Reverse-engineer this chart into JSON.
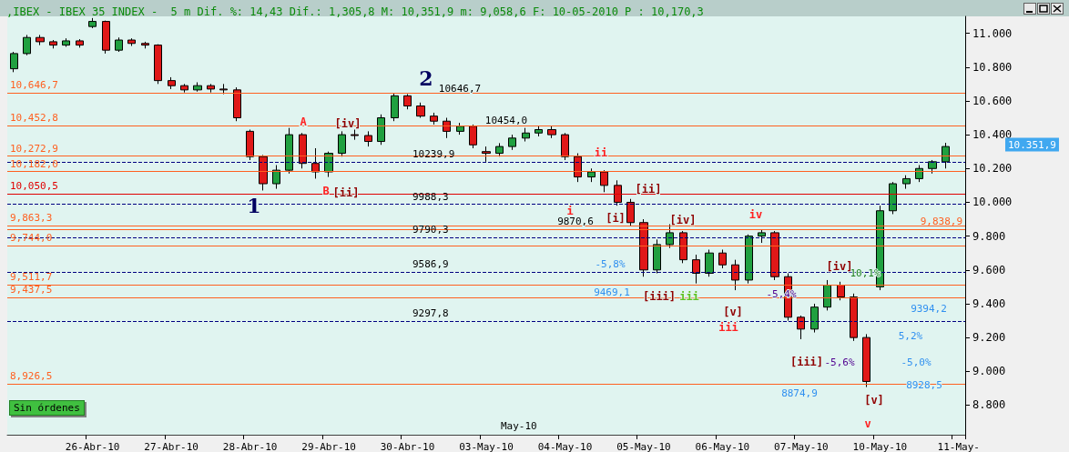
{
  "chart_data": {
    "type": "candlestick",
    "title": ",IBEX - IBEX 35 INDEX -  5 m Dif. %: 14,43 Dif.: 1,305,8 M: 10,351,9 m: 9,058,6 F: 10-05-2010 P : 10,170,3",
    "categories": [
      null,
      null,
      null,
      null,
      null,
      null,
      "26-Abr-10",
      null,
      null,
      null,
      null,
      null,
      "27-Abr-10",
      null,
      null,
      null,
      null,
      null,
      "28-Abr-10",
      null,
      null,
      null,
      null,
      null,
      "29-Abr-10",
      null,
      null,
      null,
      null,
      null,
      "30-Abr-10",
      null,
      null,
      null,
      null,
      null,
      "03-May-10",
      null,
      null,
      null,
      null,
      null,
      "04-May-10",
      null,
      null,
      null,
      null,
      null,
      "05-May-10",
      null,
      null,
      null,
      null,
      null,
      "06-May-10",
      null,
      null,
      null,
      null,
      null,
      "07-May-10",
      null,
      null,
      null,
      null,
      null,
      "10-May-10",
      null,
      null,
      null,
      null,
      null,
      "11-May-"
    ],
    "ohlc": [
      [
        10790,
        10890,
        10770,
        10880
      ],
      [
        10880,
        10990,
        10870,
        10975
      ],
      [
        10975,
        10990,
        10930,
        10950
      ],
      [
        10950,
        10960,
        10910,
        10930
      ],
      [
        10930,
        10970,
        10920,
        10955
      ],
      [
        10955,
        10965,
        10915,
        10930
      ],
      [
        11040,
        11090,
        11030,
        11070
      ],
      [
        11070,
        11075,
        10880,
        10900
      ],
      [
        10900,
        10975,
        10890,
        10960
      ],
      [
        10960,
        10970,
        10925,
        10940
      ],
      [
        10940,
        10950,
        10910,
        10930
      ],
      [
        10930,
        10935,
        10700,
        10720
      ],
      [
        10720,
        10740,
        10670,
        10690
      ],
      [
        10690,
        10700,
        10650,
        10665
      ],
      [
        10665,
        10710,
        10655,
        10690
      ],
      [
        10690,
        10700,
        10650,
        10670
      ],
      [
        10670,
        10700,
        10640,
        10665
      ],
      [
        10665,
        10680,
        10480,
        10500
      ],
      [
        10420,
        10430,
        10250,
        10270
      ],
      [
        10270,
        10280,
        10070,
        10110
      ],
      [
        10110,
        10220,
        10080,
        10190
      ],
      [
        10190,
        10440,
        10170,
        10400
      ],
      [
        10400,
        10410,
        10200,
        10230
      ],
      [
        10230,
        10320,
        10140,
        10180
      ],
      [
        10180,
        10300,
        10150,
        10290
      ],
      [
        10290,
        10420,
        10270,
        10400
      ],
      [
        10400,
        10430,
        10370,
        10395
      ],
      [
        10395,
        10420,
        10330,
        10360
      ],
      [
        10360,
        10520,
        10340,
        10500
      ],
      [
        10500,
        10647,
        10480,
        10630
      ],
      [
        10630,
        10640,
        10550,
        10570
      ],
      [
        10570,
        10590,
        10500,
        10510
      ],
      [
        10510,
        10530,
        10460,
        10480
      ],
      [
        10480,
        10500,
        10380,
        10420
      ],
      [
        10420,
        10470,
        10400,
        10450
      ],
      [
        10450,
        10460,
        10320,
        10340
      ],
      [
        10300,
        10330,
        10240,
        10290
      ],
      [
        10290,
        10350,
        10270,
        10330
      ],
      [
        10330,
        10400,
        10310,
        10380
      ],
      [
        10380,
        10440,
        10360,
        10410
      ],
      [
        10410,
        10454,
        10390,
        10430
      ],
      [
        10430,
        10450,
        10380,
        10400
      ],
      [
        10400,
        10410,
        10250,
        10270
      ],
      [
        10270,
        10290,
        10120,
        10150
      ],
      [
        10150,
        10200,
        10120,
        10180
      ],
      [
        10180,
        10190,
        10060,
        10100
      ],
      [
        10100,
        10130,
        9980,
        10000
      ],
      [
        10000,
        10020,
        9860,
        9880
      ],
      [
        9880,
        9900,
        9560,
        9600
      ],
      [
        9600,
        9780,
        9580,
        9750
      ],
      [
        9750,
        9870,
        9730,
        9820
      ],
      [
        9820,
        9830,
        9640,
        9660
      ],
      [
        9660,
        9690,
        9520,
        9580
      ],
      [
        9580,
        9720,
        9560,
        9700
      ],
      [
        9700,
        9720,
        9610,
        9630
      ],
      [
        9630,
        9660,
        9480,
        9540
      ],
      [
        9540,
        9810,
        9520,
        9800
      ],
      [
        9800,
        9838,
        9760,
        9820
      ],
      [
        9820,
        9830,
        9540,
        9560
      ],
      [
        9560,
        9580,
        9300,
        9320
      ],
      [
        9320,
        9330,
        9190,
        9250
      ],
      [
        9250,
        9400,
        9230,
        9380
      ],
      [
        9380,
        9540,
        9360,
        9510
      ],
      [
        9510,
        9530,
        9420,
        9440
      ],
      [
        9440,
        9460,
        9180,
        9200
      ],
      [
        9200,
        9220,
        8907,
        8940
      ],
      [
        9500,
        9980,
        9480,
        9950
      ],
      [
        9950,
        10120,
        9930,
        10110
      ],
      [
        10110,
        10160,
        10080,
        10140
      ],
      [
        10140,
        10220,
        10120,
        10200
      ],
      [
        10200,
        10250,
        10170,
        10240
      ],
      [
        10240,
        10352,
        10200,
        10330
      ],
      null
    ],
    "ylim": [
      8625,
      11100
    ],
    "yticks": [
      {
        "value": 8800,
        "label": "8.800"
      },
      {
        "value": 9000,
        "label": "9.000"
      },
      {
        "value": 9200,
        "label": "9.200"
      },
      {
        "value": 9400,
        "label": "9.400"
      },
      {
        "value": 9600,
        "label": "9.600"
      },
      {
        "value": 9800,
        "label": "9.800"
      },
      {
        "value": 10000,
        "label": "10.000"
      },
      {
        "value": 10200,
        "label": "10.200"
      },
      {
        "value": 10400,
        "label": "10.400"
      },
      {
        "value": 10600,
        "label": "10.600"
      },
      {
        "value": 10800,
        "label": "10.800"
      },
      {
        "value": 11000,
        "label": "11.000"
      }
    ],
    "ref_lines": [
      {
        "axis": "y",
        "value": 10646.7,
        "label": "10,646,7",
        "color": "#ff6020"
      },
      {
        "axis": "y",
        "value": 10452.8,
        "label": "10,452,8",
        "color": "#ff6020"
      },
      {
        "axis": "y",
        "value": 10272.9,
        "label": "10,272,9",
        "color": "#ff6020"
      },
      {
        "axis": "y",
        "value": 10182.0,
        "label": "10,182,0",
        "color": "#ff6020"
      },
      {
        "axis": "y",
        "value": 10050.5,
        "label": "10,050,5",
        "color": "#e00000"
      },
      {
        "axis": "y",
        "value": 9863.3,
        "label": "9,863,3",
        "color": "#ff6020"
      },
      {
        "axis": "y",
        "value": 9838.9,
        "label": "9,838,9",
        "color": "#ff6020"
      },
      {
        "axis": "y",
        "value": 9744.0,
        "label": "9,744,0",
        "color": "#ff6020"
      },
      {
        "axis": "y",
        "value": 9511.7,
        "label": "9,511,7",
        "color": "#ff6020"
      },
      {
        "axis": "y",
        "value": 9437.5,
        "label": "9,437,5",
        "color": "#ff6020"
      },
      {
        "axis": "y",
        "value": 8926.5,
        "label": "8,926,5",
        "color": "#ff6020"
      },
      {
        "axis": "y",
        "value": 10239.9,
        "label": "10239,9",
        "color": "#000080",
        "line_style": "dashed"
      },
      {
        "axis": "y",
        "value": 9988.3,
        "label": "9988,3",
        "color": "#000080",
        "line_style": "dashed"
      },
      {
        "axis": "y",
        "value": 9790.3,
        "label": "9790,3",
        "color": "#000080",
        "line_style": "dashed"
      },
      {
        "axis": "y",
        "value": 9586.9,
        "label": "9586,9",
        "color": "#000080",
        "line_style": "dashed"
      },
      {
        "axis": "y",
        "value": 9297.8,
        "label": "9297,8",
        "color": "#000080",
        "line_style": "dashed"
      }
    ],
    "annotations": [
      "1",
      "2",
      "A",
      "B",
      "[ii]",
      "[iv]",
      "10646,7",
      "10454,0",
      "i",
      "ii",
      "9870,6",
      "[i]",
      "[ii]",
      "9469,1",
      "-5,8%",
      "[iii]",
      "[iv]",
      "iii",
      "iv",
      "[v]",
      "iii",
      "-5,4%",
      "8874,9",
      "10,1%",
      "[iv]",
      "[iii]",
      "-5,6%",
      "[v]",
      "v",
      "9394,2",
      "5,2%",
      "-5,0%",
      "8928,5",
      "May-10",
      "10.351,9",
      "Sin órdenes"
    ]
  }
}
